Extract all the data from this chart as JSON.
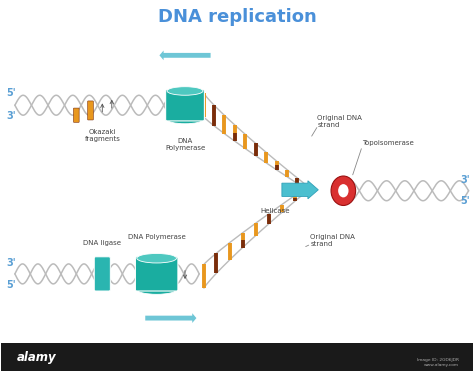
{
  "title": "DNA replication",
  "title_color": "#4a90d9",
  "title_fontsize": 13,
  "bg_color": "#ffffff",
  "labels": {
    "okazaki": "Okazaki\nfragments",
    "dna_poly_top": "DNA\nPolymerase",
    "dna_poly_bot": "DNA Polymerase",
    "helicase": "Helicase",
    "topoisomerase": "Topoisomerase",
    "orig_dna_top": "Original DNA\nstrand",
    "orig_dna_bot": "Original DNA\nstrand",
    "dna_ligase": "DNA ligase",
    "five_top_left": "5'",
    "three_top_left": "3'",
    "three_right": "3'",
    "five_right": "5'",
    "three_bot_left": "3'",
    "five_bot_left": "5'"
  },
  "colors": {
    "dna_strand_gray": "#bbbbbb",
    "dna_bar_orange": "#e8971e",
    "dna_bar_tan": "#d4a96a",
    "dna_bar_dark": "#7a2d0a",
    "dna_bar_red": "#b03010",
    "helicase_blue": "#4bbfcf",
    "topo_red": "#d93030",
    "arrow_blue": "#6ec6d6",
    "label_dark": "#444444",
    "label_blue": "#5a9fd4",
    "line_gray": "#888888",
    "dna_poly_teal": "#1aada0",
    "dna_poly_light": "#4ec8c0",
    "dna_ligase_teal": "#2ab5b0"
  }
}
